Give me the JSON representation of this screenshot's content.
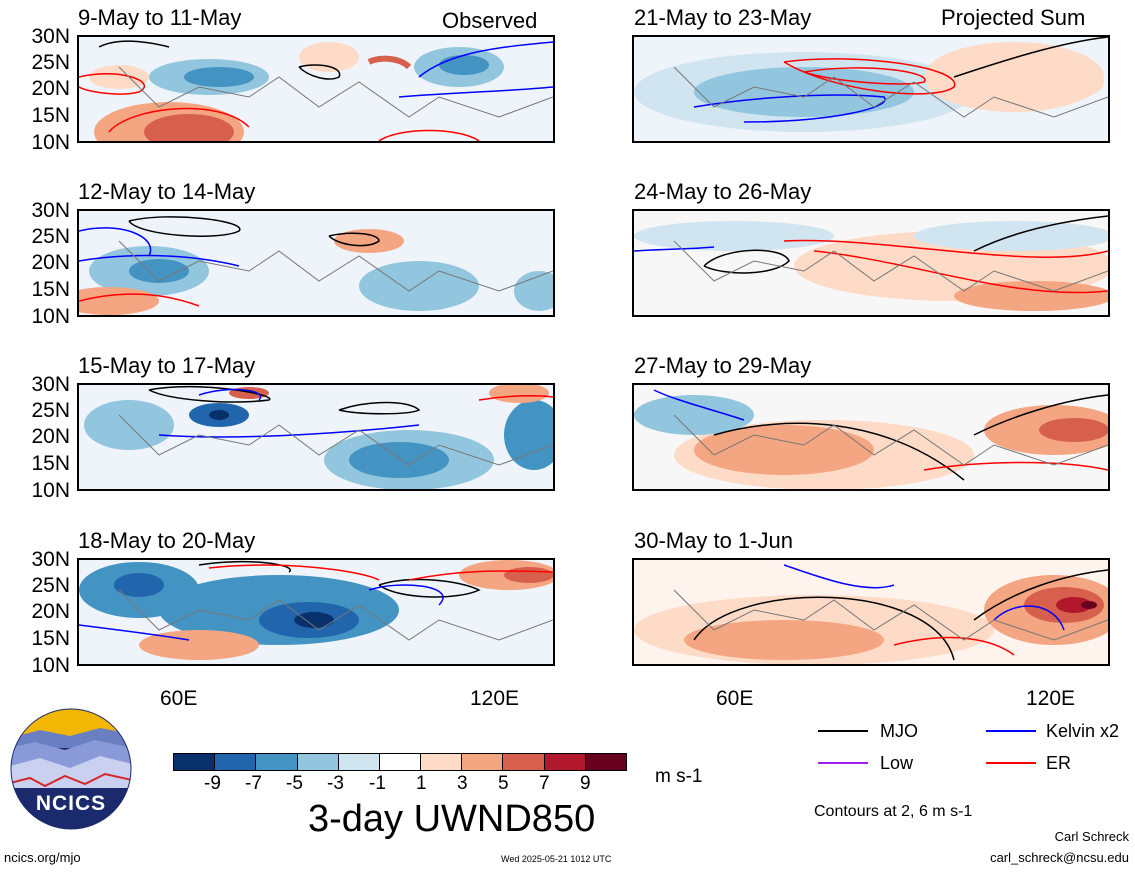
{
  "panels_left": [
    {
      "date": "9-May to 11-May",
      "label": "Observed"
    },
    {
      "date": "12-May to 14-May",
      "label": ""
    },
    {
      "date": "15-May to 17-May",
      "label": ""
    },
    {
      "date": "18-May to 20-May",
      "label": ""
    }
  ],
  "panels_right": [
    {
      "date": "21-May to 23-May",
      "label": "Projected Sum"
    },
    {
      "date": "24-May to 26-May",
      "label": ""
    },
    {
      "date": "27-May to 29-May",
      "label": ""
    },
    {
      "date": "30-May to 1-Jun",
      "label": ""
    }
  ],
  "lat_labels": [
    "30N",
    "25N",
    "20N",
    "15N",
    "10N"
  ],
  "lon_labels": [
    "60E",
    "120E"
  ],
  "colorbar": {
    "colors": [
      "#08306b",
      "#2166ac",
      "#4393c3",
      "#92c5de",
      "#d1e5f0",
      "#ffffff",
      "#fddbc7",
      "#f4a582",
      "#d6604d",
      "#b2182b",
      "#67001f"
    ],
    "ticks": [
      "-9",
      "-7",
      "-5",
      "-3",
      "-1",
      "1",
      "3",
      "5",
      "7",
      "9"
    ],
    "units": "m s-1",
    "title": "3-day UWND850"
  },
  "legend": {
    "items": [
      {
        "name": "MJO",
        "color": "#000000"
      },
      {
        "name": "Kelvin x2",
        "color": "#0000ff"
      },
      {
        "name": "Low",
        "color": "#a020f0"
      },
      {
        "name": "ER",
        "color": "#ff0000"
      }
    ],
    "note": "Contours at 2, 6 m s-1"
  },
  "logo": {
    "text": "NCICS"
  },
  "footer": {
    "url": "ncics.org/mjo",
    "timestamp": "Wed 2025-05-21 1012 UTC",
    "author": "Carl Schreck",
    "email": "carl_schreck@ncsu.edu"
  }
}
